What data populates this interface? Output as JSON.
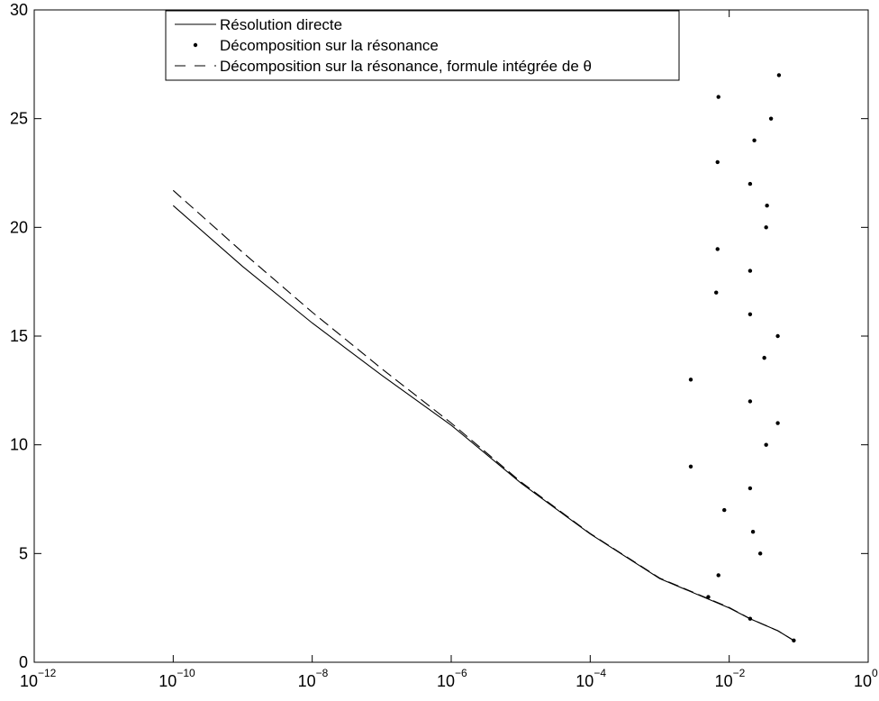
{
  "chart_data": {
    "type": "line",
    "title": "",
    "xlabel": "",
    "ylabel": "",
    "xscale": "log",
    "xlim": [
      1e-12,
      1
    ],
    "ylim": [
      0,
      30
    ],
    "x_ticks": [
      {
        "value": 1e-12,
        "base": "10",
        "exp": "−12"
      },
      {
        "value": 1e-10,
        "base": "10",
        "exp": "−10"
      },
      {
        "value": 1e-08,
        "base": "10",
        "exp": "−8"
      },
      {
        "value": 1e-06,
        "base": "10",
        "exp": "−6"
      },
      {
        "value": 0.0001,
        "base": "10",
        "exp": "−4"
      },
      {
        "value": 0.01,
        "base": "10",
        "exp": "−2"
      },
      {
        "value": 1,
        "base": "10",
        "exp": "0"
      }
    ],
    "y_ticks": [
      {
        "value": 0,
        "label": "0"
      },
      {
        "value": 5,
        "label": "5"
      },
      {
        "value": 10,
        "label": "10"
      },
      {
        "value": 15,
        "label": "15"
      },
      {
        "value": 20,
        "label": "20"
      },
      {
        "value": 25,
        "label": "25"
      },
      {
        "value": 30,
        "label": "30"
      }
    ],
    "grid": false,
    "legend_position": "top-center",
    "series": [
      {
        "name": "Résolution directe",
        "style": "solid",
        "color": "#000000",
        "x": [
          1e-10,
          1e-09,
          1e-08,
          1e-07,
          1e-06,
          1e-05,
          0.0001,
          0.001,
          0.01,
          0.02,
          0.05,
          0.085
        ],
        "y": [
          21.0,
          18.2,
          15.6,
          13.2,
          10.9,
          8.25,
          5.9,
          3.85,
          2.5,
          2.0,
          1.45,
          1.0
        ]
      },
      {
        "name": "Décomposition sur la résonance",
        "style": "dots",
        "color": "#000000",
        "x": [
          0.085,
          0.02,
          0.005,
          0.007,
          0.028,
          0.022,
          0.0085,
          0.02,
          0.0028,
          0.034,
          0.05,
          0.02,
          0.0028,
          0.032,
          0.05,
          0.02,
          0.0065,
          0.02,
          0.0068,
          0.034,
          0.035,
          0.02,
          0.0068,
          0.023,
          0.04,
          0.007,
          0.052
        ],
        "y": [
          1,
          2,
          3,
          4,
          5,
          6,
          7,
          8,
          9,
          10,
          11,
          12,
          13,
          14,
          15,
          16,
          17,
          18,
          19,
          20,
          21,
          22,
          23,
          24,
          25,
          26,
          27
        ]
      },
      {
        "name": "Décomposition sur la résonance, formule intégrée de θ",
        "style": "dashed",
        "color": "#000000",
        "x": [
          1e-10,
          1e-09,
          1e-08,
          1e-07,
          1e-06,
          1e-05,
          0.0001,
          0.001,
          0.01,
          0.02,
          0.05,
          0.085
        ],
        "y": [
          21.7,
          18.85,
          16.1,
          13.5,
          11.0,
          8.3,
          5.92,
          3.87,
          2.52,
          2.0,
          1.45,
          1.0
        ]
      }
    ]
  }
}
